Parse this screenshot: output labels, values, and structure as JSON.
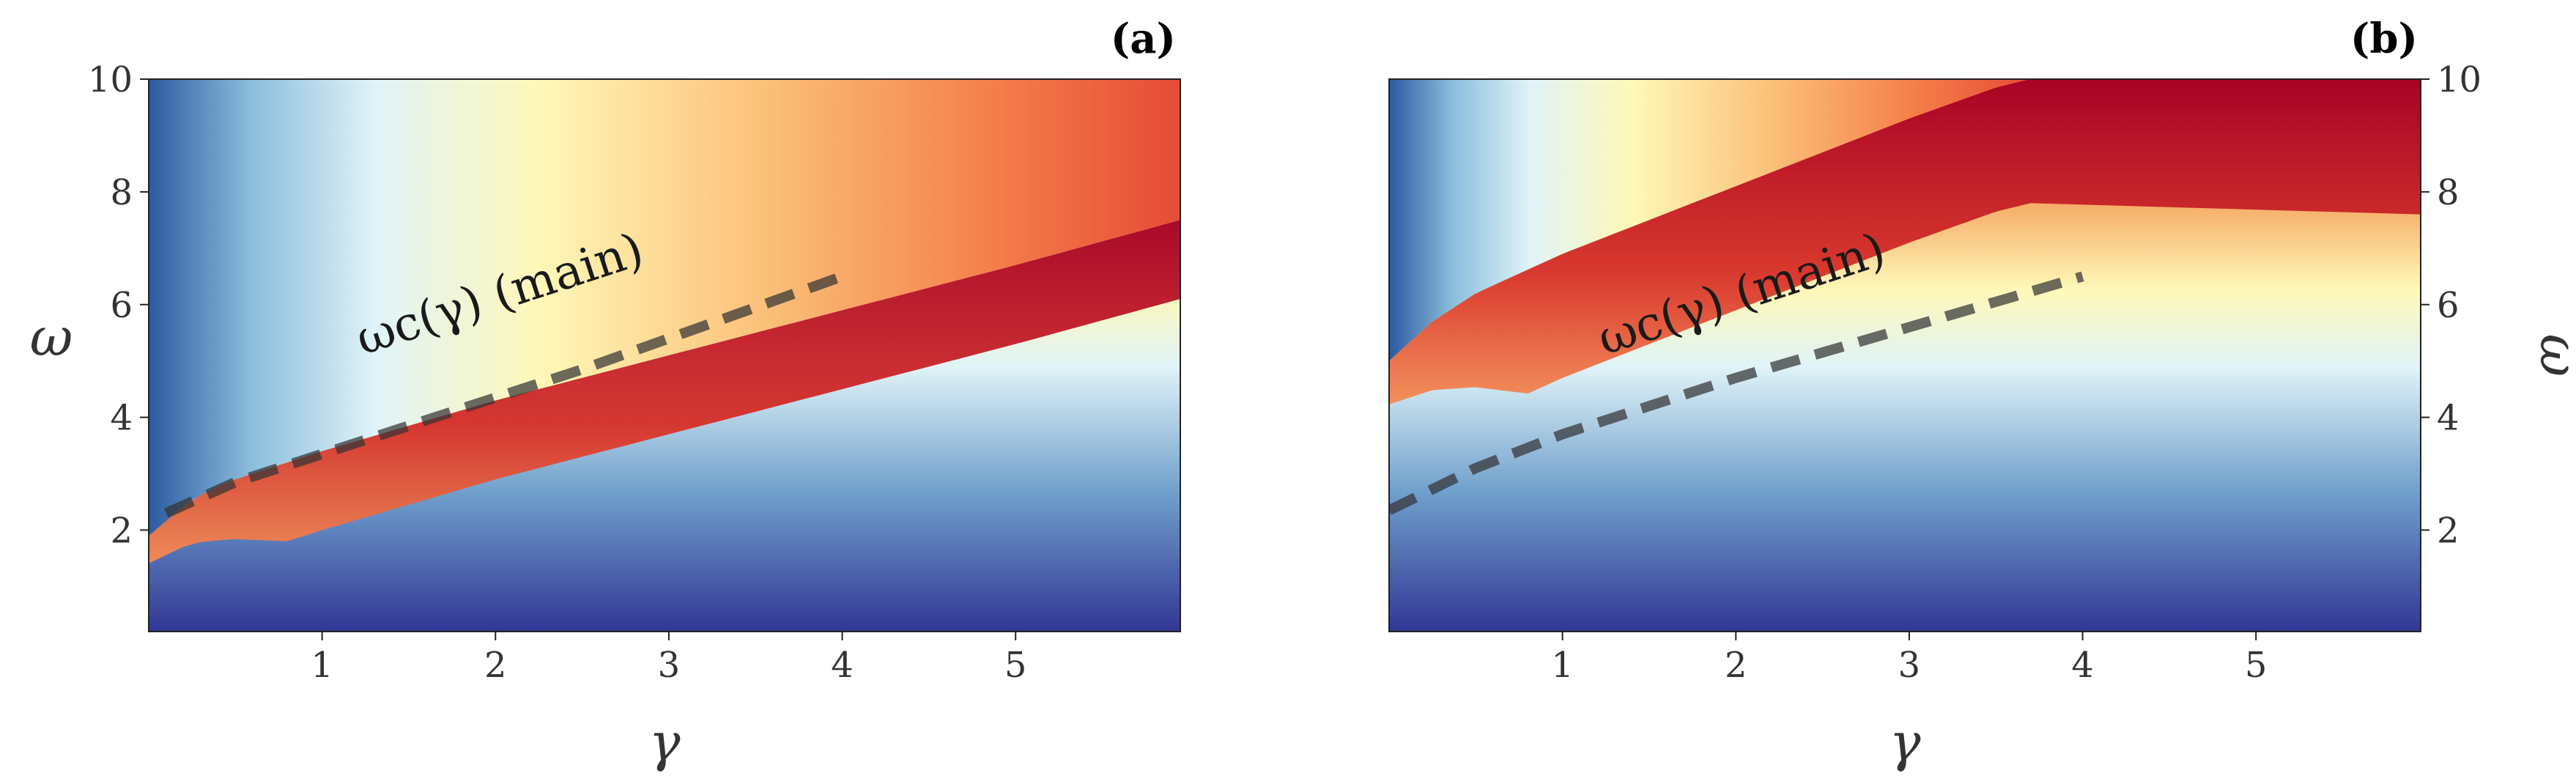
{
  "figure": {
    "panels": [
      {
        "label": "(a)",
        "annotation": "ωc(γ) (main)",
        "xlabel": "γ",
        "ylabel": "ω"
      },
      {
        "label": "(b)",
        "annotation": "ωc(γ) (main)",
        "xlabel": "γ",
        "ylabel": "ω"
      }
    ]
  },
  "chart_data": [
    {
      "type": "heatmap",
      "title": "(a)",
      "xlabel": "γ",
      "ylabel": "ω",
      "xlim": [
        0,
        5.95
      ],
      "ylim": [
        0.2,
        10
      ],
      "x_ticks": [
        1,
        2,
        3,
        4,
        5
      ],
      "x_tick_labels": [
        "1",
        "2",
        "3",
        "4",
        "5"
      ],
      "y_ticks": [
        2,
        4,
        6,
        8,
        10
      ],
      "y_tick_labels": [
        "2",
        "4",
        "6",
        "8",
        "10"
      ],
      "y_axis_side": "left",
      "colormap": "RdYlBu_r",
      "boundary": {
        "x": [
          0,
          0.25,
          0.5,
          1,
          1.5,
          2,
          3,
          4,
          5,
          5.95
        ],
        "y": [
          1.9,
          2.55,
          2.9,
          3.4,
          3.85,
          4.3,
          5.1,
          5.9,
          6.7,
          7.5
        ]
      },
      "dashed_curve": {
        "label": "ωc(γ) (main)",
        "color": "#333333",
        "style": "dashed",
        "x": [
          0.1,
          0.5,
          1,
          1.5,
          2,
          2.5,
          3,
          3.5,
          4
        ],
        "y": [
          2.3,
          2.85,
          3.35,
          3.85,
          4.35,
          4.85,
          5.4,
          5.95,
          6.5
        ]
      },
      "grid": false
    },
    {
      "type": "heatmap",
      "title": "(b)",
      "xlabel": "γ",
      "ylabel": "ω",
      "xlim": [
        0,
        5.95
      ],
      "ylim": [
        0.2,
        10
      ],
      "x_ticks": [
        1,
        2,
        3,
        4,
        5
      ],
      "x_tick_labels": [
        "1",
        "2",
        "3",
        "4",
        "5"
      ],
      "y_ticks": [
        2,
        4,
        6,
        8,
        10
      ],
      "y_tick_labels": [
        "2",
        "4",
        "6",
        "8",
        "10"
      ],
      "y_axis_side": "right",
      "colormap": "RdYlBu_r",
      "boundary": {
        "x": [
          0,
          0.25,
          0.5,
          1,
          1.5,
          2,
          2.5,
          3,
          3.5,
          3.7
        ],
        "y": [
          5,
          5.7,
          6.2,
          6.9,
          7.5,
          8.1,
          8.7,
          9.3,
          9.85,
          10
        ]
      },
      "dashed_curve": {
        "label": "ωc(γ) (main)",
        "color": "#333333",
        "style": "dashed",
        "x": [
          0,
          0.5,
          1,
          1.5,
          2,
          2.5,
          3,
          3.5,
          4
        ],
        "y": [
          2.35,
          3.1,
          3.7,
          4.2,
          4.7,
          5.15,
          5.6,
          6.05,
          6.5
        ]
      },
      "grid": false
    }
  ]
}
